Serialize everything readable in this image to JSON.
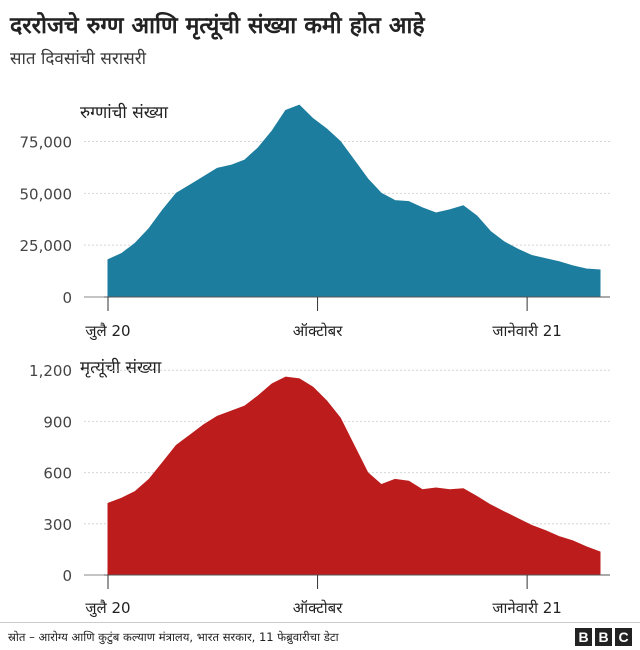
{
  "header": {
    "title": "दररोजचे रुग्ण आणि मृत्यूंची संख्या कमी होत आहे",
    "subtitle": "सात दिवसांची सरासरी"
  },
  "colors": {
    "cases": "#1c7d9e",
    "deaths": "#bd1c1c",
    "grid": "#d6d6d6",
    "axis": "#333333"
  },
  "chart_data": [
    {
      "type": "area",
      "title": "रुग्णांची संख्या",
      "xlabel": "",
      "ylabel": "",
      "ylim": [
        0,
        95000
      ],
      "yticks": [
        0,
        25000,
        50000,
        75000
      ],
      "ytick_labels": [
        "0",
        "25,000",
        "50,000",
        "75,000"
      ],
      "xticks": [
        "जुलै 20",
        "ऑक्टोबर",
        "जानेवारी 21"
      ],
      "xtick_days": [
        0,
        92,
        184
      ],
      "grid": true,
      "x_days": [
        0,
        6,
        12,
        18,
        24,
        30,
        36,
        42,
        48,
        54,
        60,
        66,
        72,
        78,
        84,
        90,
        96,
        102,
        108,
        114,
        120,
        126,
        132,
        138,
        144,
        150,
        156,
        162,
        168,
        174,
        180,
        186,
        192,
        198,
        204,
        210,
        216
      ],
      "values": [
        18000,
        21000,
        26000,
        33000,
        42000,
        50000,
        54000,
        58000,
        62000,
        63500,
        66000,
        72000,
        80000,
        90000,
        92500,
        86000,
        81000,
        75000,
        66000,
        57000,
        50000,
        46500,
        46000,
        43000,
        40500,
        42000,
        44000,
        39000,
        31500,
        26500,
        23000,
        20000,
        18500,
        17000,
        15000,
        13500,
        13000
      ]
    },
    {
      "type": "area",
      "title": "मृत्यूंची संख्या",
      "xlabel": "",
      "ylabel": "",
      "ylim": [
        0,
        1260
      ],
      "yticks": [
        0,
        300,
        600,
        900,
        1200
      ],
      "ytick_labels": [
        "0",
        "300",
        "600",
        "900",
        "1,200"
      ],
      "xticks": [
        "जुलै 20",
        "ऑक्टोबर",
        "जानेवारी 21"
      ],
      "xtick_days": [
        0,
        92,
        184
      ],
      "grid": true,
      "x_days": [
        0,
        6,
        12,
        18,
        24,
        30,
        36,
        42,
        48,
        54,
        60,
        66,
        72,
        78,
        84,
        90,
        96,
        102,
        108,
        114,
        120,
        126,
        132,
        138,
        144,
        150,
        156,
        162,
        168,
        174,
        180,
        186,
        192,
        198,
        204,
        210,
        216
      ],
      "values": [
        420,
        450,
        490,
        560,
        660,
        760,
        820,
        880,
        930,
        960,
        990,
        1050,
        1120,
        1160,
        1150,
        1100,
        1020,
        920,
        760,
        600,
        530,
        560,
        550,
        500,
        510,
        500,
        505,
        460,
        410,
        370,
        330,
        290,
        260,
        225,
        200,
        165,
        135
      ]
    }
  ],
  "footer": {
    "source": "स्रोत – आरोग्य आणि कुटुंब कल्याण मंत्रालय, भारत सरकार,  11 फेब्रुवारीचा डेटा",
    "logo_letters": [
      "B",
      "B",
      "C"
    ]
  }
}
